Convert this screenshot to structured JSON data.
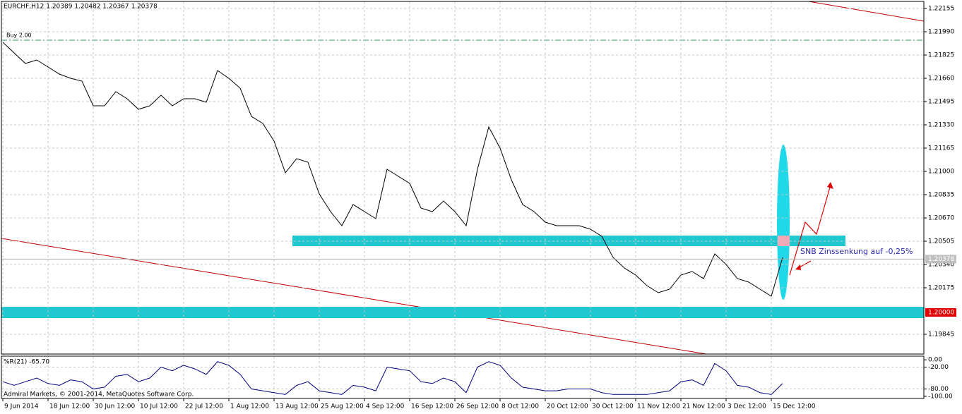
{
  "chart_data": [
    {
      "type": "line",
      "title": "EURCHF,H12  1.20389 1.20482 1.20367 1.20378",
      "color": "#000000",
      "x": [
        0,
        4,
        8,
        12,
        16,
        20,
        24,
        28,
        32,
        36,
        40,
        44,
        48,
        52,
        56,
        60,
        64,
        68,
        72,
        76,
        80,
        84,
        88,
        92,
        96,
        100,
        104,
        108,
        112,
        116,
        120,
        124,
        128,
        132,
        136,
        140,
        144,
        148,
        152,
        156,
        160,
        164,
        168,
        172,
        176,
        180,
        184,
        188,
        192,
        196,
        200,
        204,
        208,
        212,
        216,
        220,
        224,
        228,
        232,
        236,
        240,
        244,
        248,
        252,
        256,
        260,
        264,
        268,
        272,
        276
      ],
      "values": [
        1.21915,
        1.2184,
        1.21765,
        1.2179,
        1.2174,
        1.2169,
        1.2166,
        1.2164,
        1.21465,
        1.21465,
        1.21565,
        1.21515,
        1.2144,
        1.21465,
        1.2154,
        1.21465,
        1.21515,
        1.21515,
        1.2149,
        1.21715,
        1.2166,
        1.2159,
        1.2139,
        1.2134,
        1.21215,
        1.2099,
        1.2109,
        1.21065,
        1.2084,
        1.20715,
        1.20615,
        1.20765,
        1.20715,
        1.20665,
        1.21015,
        1.20965,
        1.20915,
        1.2074,
        1.20715,
        1.2079,
        1.20715,
        1.20615,
        1.21015,
        1.21315,
        1.21165,
        1.2094,
        1.20765,
        1.20715,
        1.2064,
        1.20615,
        1.20615,
        1.20615,
        1.2059,
        1.2054,
        1.2039,
        1.20315,
        1.20265,
        1.2019,
        1.2014,
        1.20165,
        1.20265,
        1.2029,
        1.2024,
        1.20415,
        1.2034,
        1.2024,
        1.20215,
        1.20165,
        1.20115,
        1.2039
      ],
      "xlim": [
        -0.5,
        326
      ],
      "xticks": [
        {
          "value": 0,
          "label": "9 Jun 2014"
        },
        {
          "value": 16,
          "label": "18 Jun 12:00"
        },
        {
          "value": 32,
          "label": "30 Jun 12:00"
        },
        {
          "value": 48,
          "label": "10 Jul 12:00"
        },
        {
          "value": 64,
          "label": "22 Jul 12:00"
        },
        {
          "value": 80,
          "label": "1 Aug 12:00"
        },
        {
          "value": 96,
          "label": "13 Aug 12:00"
        },
        {
          "value": 112,
          "label": "25 Aug 12:00"
        },
        {
          "value": 128,
          "label": "4 Sep 12:00"
        },
        {
          "value": 144,
          "label": "16 Sep 12:00"
        },
        {
          "value": 160,
          "label": "26 Sep 12:00"
        },
        {
          "value": 176,
          "label": "8 Oct 12:00"
        },
        {
          "value": 192,
          "label": "20 Oct 12:00"
        },
        {
          "value": 208,
          "label": "30 Oct 12:00"
        },
        {
          "value": 224,
          "label": "11 Nov 12:00"
        },
        {
          "value": 240,
          "label": "21 Nov 12:00"
        },
        {
          "value": 256,
          "label": "3 Dec 12:00"
        },
        {
          "value": 272,
          "label": "15 Dec 12:00"
        }
      ],
      "ylim": [
        1.19705,
        1.22205
      ],
      "yticks": [
        1.22155,
        {
          "value": 1.2199,
          "label": "1.21990"
        },
        1.21825,
        {
          "value": 1.2166,
          "label": "1.21660"
        },
        1.21495,
        {
          "value": 1.2133,
          "label": "1.21330"
        },
        1.21165,
        {
          "value": 1.21,
          "label": "1.21000"
        },
        1.20835,
        {
          "value": 1.2067,
          "label": "1.20670"
        },
        1.20505,
        {
          "value": 1.2034,
          "label": "1.20340"
        },
        1.20175,
        1.19845
      ],
      "grid": true,
      "price_marker": {
        "value": 1.2,
        "label": "1.20000"
      },
      "last_price": 1.20378,
      "annotations": [
        "SNB Zinssenkung auf -0,25%",
        "Buy 2.00"
      ]
    },
    {
      "type": "line",
      "title": "%R(21) -65.70",
      "color": "#000080",
      "values": [
        -60,
        -70,
        -60,
        -50,
        -65,
        -70,
        -55,
        -60,
        -80,
        -75,
        -45,
        -40,
        -60,
        -50,
        -20,
        -30,
        -15,
        -25,
        -40,
        -5,
        -15,
        -40,
        -80,
        -85,
        -90,
        -95,
        -70,
        -60,
        -85,
        -90,
        -95,
        -70,
        -75,
        -85,
        -20,
        -25,
        -30,
        -60,
        -65,
        -50,
        -60,
        -90,
        -20,
        -5,
        -15,
        -50,
        -75,
        -80,
        -85,
        -85,
        -80,
        -80,
        -80,
        -90,
        -95,
        -95,
        -95,
        -95,
        -90,
        -85,
        -60,
        -55,
        -70,
        -10,
        -30,
        -70,
        -75,
        -90,
        -95,
        -65
      ],
      "ylim": [
        -106,
        10
      ],
      "yticks": [
        {
          "value": 0,
          "label": "0.00"
        },
        {
          "value": -20,
          "label": "-20.00"
        },
        {
          "value": -80,
          "label": "-80.00"
        },
        {
          "value": -100,
          "label": "-100.00"
        }
      ],
      "footer": "Admiral Markets, © 2001-2014, MetaQuotes Software Corp."
    }
  ]
}
